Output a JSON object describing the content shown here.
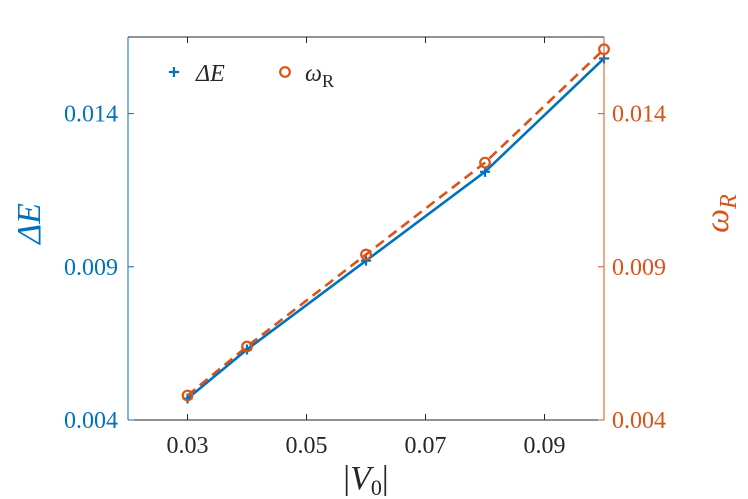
{
  "chart_data": {
    "type": "line",
    "title": "",
    "xlabel": "|V0|",
    "xlabel_parts": {
      "open": "|",
      "var": "V",
      "sub": "0",
      "close": "|"
    },
    "ylabel_left": "ΔE",
    "ylabel_right": "ωR",
    "ylabel_right_parts": {
      "var": "ω",
      "sub": "R"
    },
    "xlim": [
      0.02,
      0.1
    ],
    "ylim": [
      0.004,
      0.0165
    ],
    "x_ticks": [
      0.03,
      0.05,
      0.07,
      0.09
    ],
    "x_tick_labels": [
      "0.03",
      "0.05",
      "0.07",
      "0.09"
    ],
    "y_ticks": [
      0.004,
      0.009,
      0.014
    ],
    "y_tick_labels_left": [
      "0.004",
      "0.009",
      "0.014"
    ],
    "y_tick_labels_right": [
      "0.004",
      "0.009",
      "0.014"
    ],
    "grid": false,
    "legend_position": "top-left",
    "colors": {
      "blue": "#0072BD",
      "orange": "#D95319",
      "axis": "#262626"
    },
    "series": [
      {
        "name": "ΔE",
        "legend_parts": {
          "var": "ΔE",
          "sub": ""
        },
        "axis": "left",
        "marker": "plus",
        "line": "solid",
        "color": "#0072BD",
        "x": [
          0.03,
          0.04,
          0.06,
          0.08,
          0.1
        ],
        "y": [
          0.0047,
          0.0063,
          0.0092,
          0.0121,
          0.0158
        ]
      },
      {
        "name": "ωR",
        "legend_parts": {
          "var": "ω",
          "sub": "R"
        },
        "axis": "right",
        "marker": "circle",
        "line": "dashed",
        "color": "#D95319",
        "x": [
          0.03,
          0.04,
          0.06,
          0.08,
          0.1
        ],
        "y": [
          0.0048,
          0.0064,
          0.0094,
          0.0124,
          0.0161
        ]
      }
    ]
  }
}
